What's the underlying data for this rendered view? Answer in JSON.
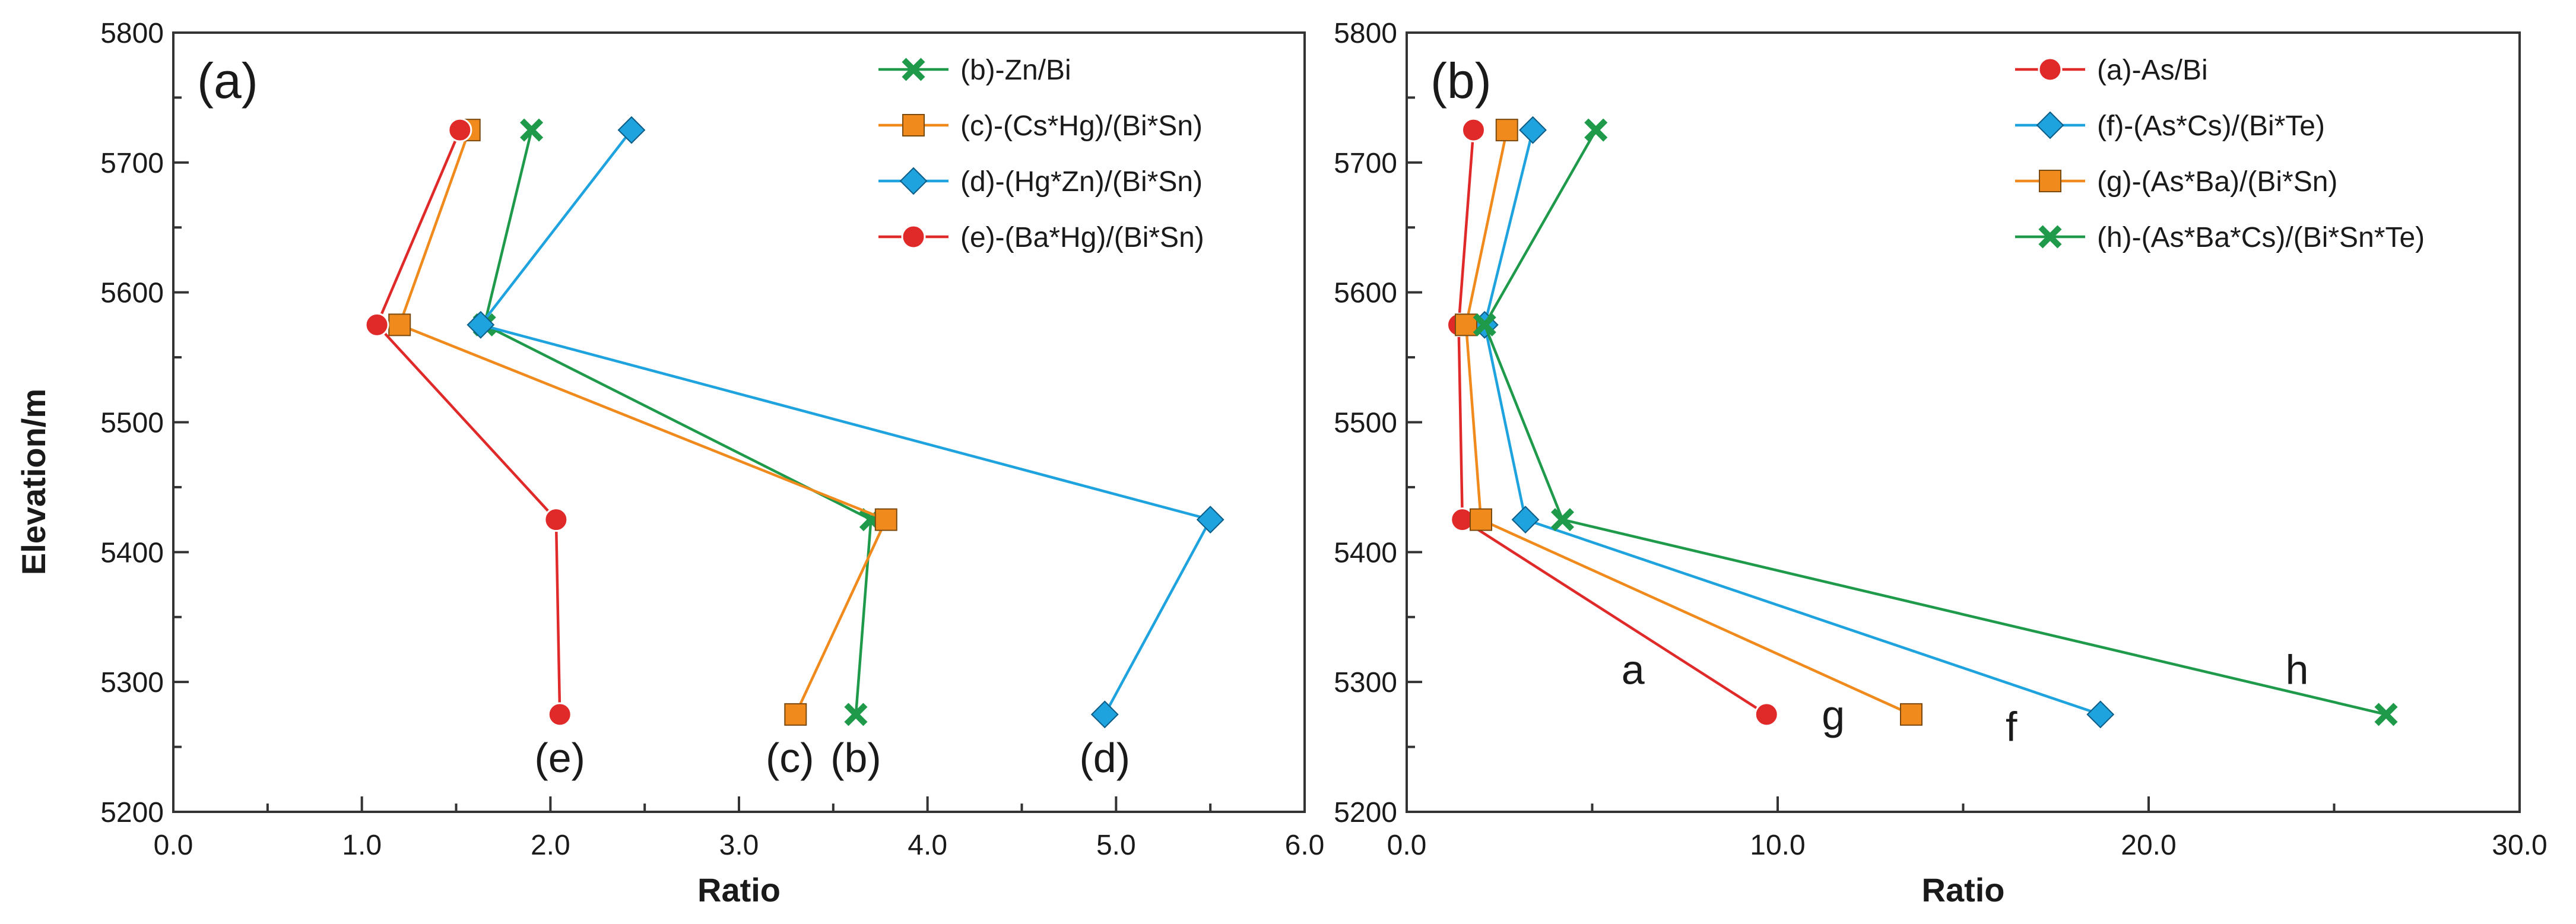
{
  "chart_data": [
    {
      "id": "left",
      "type": "line",
      "panel_label": "(a)",
      "xlabel": "Ratio",
      "ylabel": "Elevation/m",
      "xlim": [
        0,
        6
      ],
      "ylim": [
        5200,
        5800
      ],
      "x_ticks": [
        0,
        1,
        2,
        3,
        4,
        5,
        6
      ],
      "x_tick_labels": [
        "0.0",
        "1.0",
        "2.0",
        "3.0",
        "4.0",
        "5.0",
        "6.0"
      ],
      "y_ticks": [
        5200,
        5300,
        5400,
        5500,
        5600,
        5700,
        5800
      ],
      "y_tick_labels": [
        "5200",
        "5300",
        "5400",
        "5500",
        "5600",
        "5700",
        "5800"
      ],
      "legend_position": "top-right",
      "series": [
        {
          "name": "(b)-Zn/Bi",
          "color": "#1e9a4a",
          "marker": "x",
          "points": [
            [
              1.9,
              5725
            ],
            [
              1.65,
              5575
            ],
            [
              3.7,
              5425
            ],
            [
              3.62,
              5275
            ]
          ]
        },
        {
          "name": "(c)-(Cs*Hg)/(Bi*Sn)",
          "color": "#f08a1c",
          "marker": "square",
          "points": [
            [
              1.57,
              5725
            ],
            [
              1.2,
              5575
            ],
            [
              3.78,
              5425
            ],
            [
              3.3,
              5275
            ]
          ]
        },
        {
          "name": "(d)-(Hg*Zn)/(Bi*Sn)",
          "color": "#1fa3de",
          "marker": "diamond",
          "points": [
            [
              2.43,
              5725
            ],
            [
              1.63,
              5575
            ],
            [
              5.5,
              5425
            ],
            [
              4.94,
              5275
            ]
          ]
        },
        {
          "name": "(e)-(Ba*Hg)/(Bi*Sn)",
          "color": "#e02a2a",
          "marker": "circle",
          "points": [
            [
              1.52,
              5725
            ],
            [
              1.08,
              5575
            ],
            [
              2.03,
              5425
            ],
            [
              2.05,
              5275
            ]
          ]
        }
      ],
      "annotations": [
        {
          "text": "(e)",
          "x": 2.05,
          "y": 5242
        },
        {
          "text": "(c)",
          "x": 3.27,
          "y": 5242
        },
        {
          "text": "(b)",
          "x": 3.62,
          "y": 5242
        },
        {
          "text": "(d)",
          "x": 4.94,
          "y": 5242
        }
      ]
    },
    {
      "id": "right",
      "type": "line",
      "panel_label": "(b)",
      "xlabel": "Ratio",
      "ylabel": "",
      "xlim": [
        0,
        30
      ],
      "ylim": [
        5200,
        5800
      ],
      "x_ticks": [
        0,
        10,
        20,
        30
      ],
      "x_tick_labels": [
        "0.0",
        "10.0",
        "20.0",
        "30.0"
      ],
      "y_ticks": [
        5200,
        5300,
        5400,
        5500,
        5600,
        5700,
        5800
      ],
      "y_tick_labels": [
        "5200",
        "5300",
        "5400",
        "5500",
        "5600",
        "5700",
        "5800"
      ],
      "legend_position": "top-right",
      "series": [
        {
          "name": "(a)-As/Bi",
          "color": "#e02a2a",
          "marker": "circle",
          "points": [
            [
              1.8,
              5725
            ],
            [
              1.4,
              5575
            ],
            [
              1.5,
              5425
            ],
            [
              9.7,
              5275
            ]
          ]
        },
        {
          "name": "(f)-(As*Cs)/(Bi*Te)",
          "color": "#1fa3de",
          "marker": "diamond",
          "points": [
            [
              3.4,
              5725
            ],
            [
              2.1,
              5575
            ],
            [
              3.2,
              5425
            ],
            [
              18.7,
              5275
            ]
          ]
        },
        {
          "name": "(g)-(As*Ba)/(Bi*Sn)",
          "color": "#f08a1c",
          "marker": "square",
          "points": [
            [
              2.7,
              5725
            ],
            [
              1.6,
              5575
            ],
            [
              2.0,
              5425
            ],
            [
              13.6,
              5275
            ]
          ]
        },
        {
          "name": "(h)-(As*Ba*Cs)/(Bi*Sn*Te)",
          "color": "#1e9a4a",
          "marker": "x",
          "points": [
            [
              5.1,
              5725
            ],
            [
              2.1,
              5575
            ],
            [
              4.2,
              5425
            ],
            [
              26.4,
              5275
            ]
          ]
        }
      ],
      "annotations": [
        {
          "text": "a",
          "x": 6.1,
          "y": 5310
        },
        {
          "text": "g",
          "x": 11.5,
          "y": 5275
        },
        {
          "text": "f",
          "x": 16.3,
          "y": 5266
        },
        {
          "text": "h",
          "x": 24.0,
          "y": 5310
        }
      ]
    }
  ]
}
